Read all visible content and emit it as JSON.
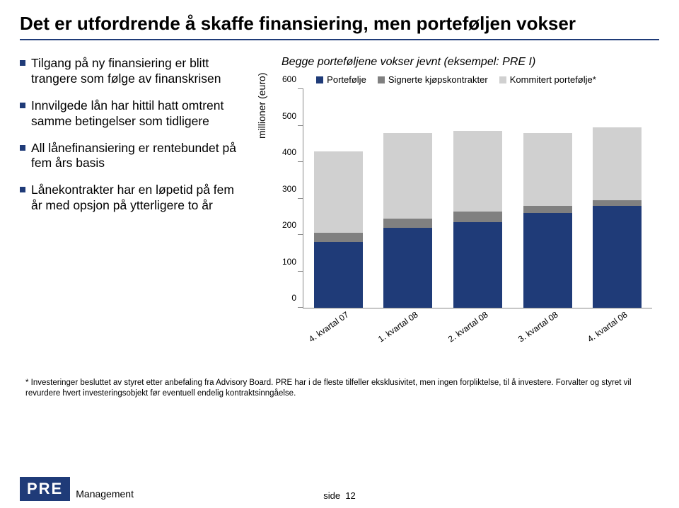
{
  "title": "Det er utfordrende å skaffe finansiering, men porteføljen vokser",
  "bullets": [
    "Tilgang på ny finansiering er blitt trangere som følge av finanskrisen",
    "Innvilgede lån har hittil hatt omtrent samme betingelser som tidligere",
    "All lånefinansiering er rentebundet på fem års basis",
    "Lånekontrakter har en løpetid på fem år med opsjon på ytterligere to år"
  ],
  "chart": {
    "type": "stacked-bar",
    "title": "Begge porteføljene vokser jevnt (eksempel: PRE I)",
    "ylabel": "millioner (euro)",
    "ylim": [
      0,
      600
    ],
    "yticks": [
      0,
      100,
      200,
      300,
      400,
      500,
      600
    ],
    "label_fontsize": 12,
    "title_fontsize": 16,
    "categories": [
      "4. kvartal 07",
      "1. kvartal 08",
      "2. kvartal 08",
      "3. kvartal 08",
      "4. kvartal 08"
    ],
    "series": [
      {
        "name": "Portefølje",
        "color": "#1f3b78",
        "values": [
          180,
          220,
          235,
          260,
          280
        ]
      },
      {
        "name": "Signerte kjøpskontrakter",
        "color": "#808080",
        "values": [
          25,
          25,
          30,
          20,
          15
        ]
      },
      {
        "name": "Kommitert portefølje*",
        "color": "#d0d0d0",
        "values": [
          225,
          235,
          220,
          200,
          200
        ]
      }
    ],
    "background_color": "#ffffff",
    "axis_color": "#888888",
    "bar_width_pct": 14
  },
  "footnote": "*  Investeringer besluttet av styret etter anbefaling fra Advisory Board. PRE har i de fleste tilfeller eksklusivitet, men ingen forpliktelse, til å investere. Forvalter og styret vil revurdere hvert investeringsobjekt før eventuell endelig kontraktsinngåelse.",
  "logo": {
    "main": "PRE",
    "sub": "Management",
    "bg": "#1f3b78"
  },
  "page_label": "side",
  "page_number": "12"
}
